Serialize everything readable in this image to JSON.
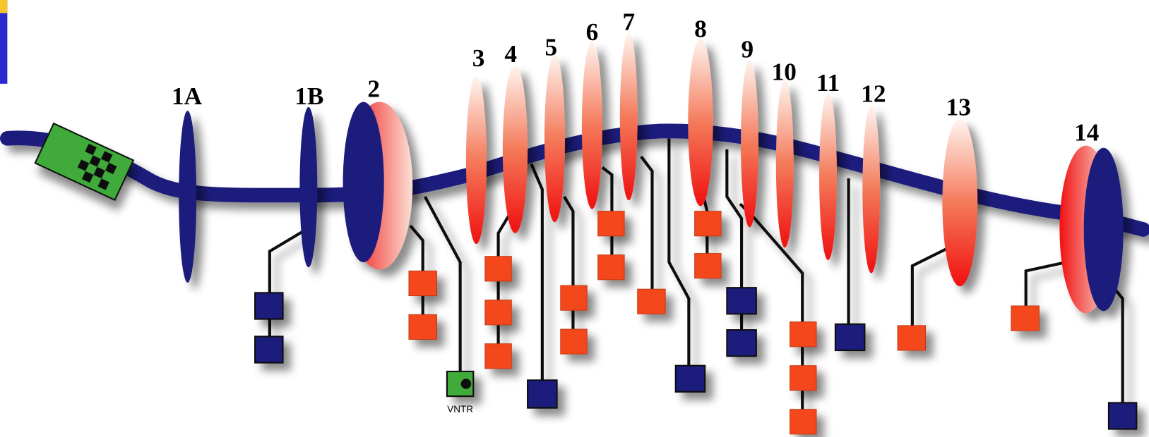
{
  "nodes": [
    {
      "label": "1A"
    },
    {
      "label": "1B"
    },
    {
      "label": "2"
    },
    {
      "label": "3"
    },
    {
      "label": "4"
    },
    {
      "label": "5"
    },
    {
      "label": "6"
    },
    {
      "label": "7"
    },
    {
      "label": "8"
    },
    {
      "label": "9"
    },
    {
      "label": "10"
    },
    {
      "label": "11"
    },
    {
      "label": "12"
    },
    {
      "label": "13"
    },
    {
      "label": "14"
    }
  ],
  "vntr": {
    "label": "VNTR"
  }
}
